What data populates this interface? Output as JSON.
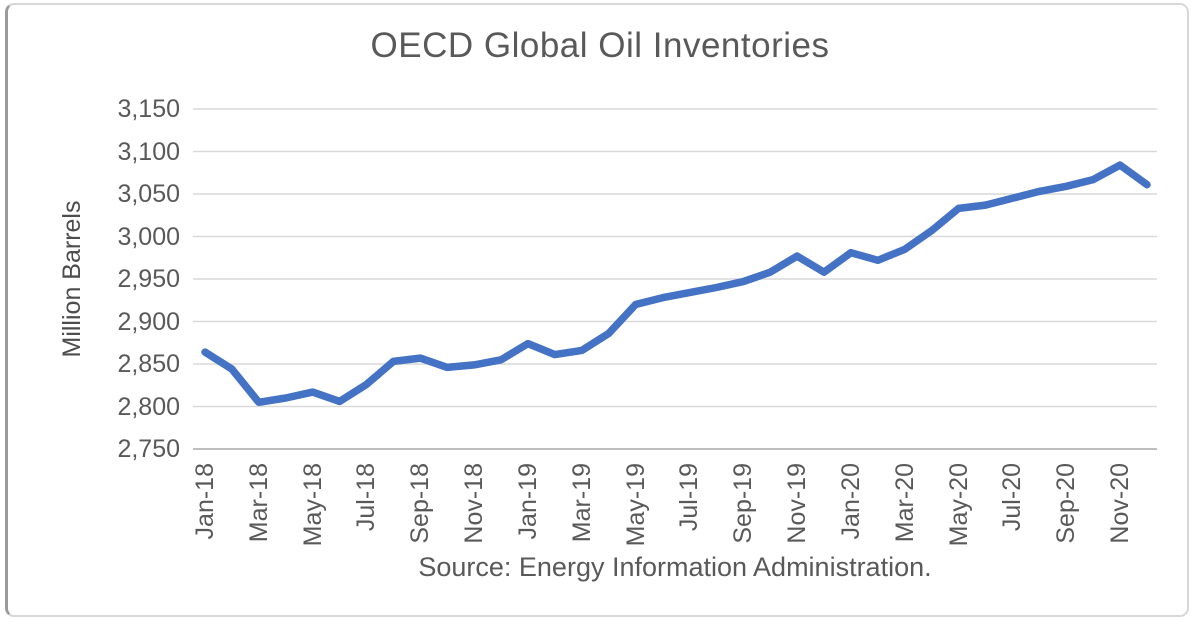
{
  "title": "OECD Global Oil Inventories",
  "source": "Source: Energy Information Administration.",
  "chart_data": {
    "type": "line",
    "title": "OECD Global Oil Inventories",
    "xlabel": "",
    "ylabel": "Million Barrels",
    "x": [
      "Jan-18",
      "Feb-18",
      "Mar-18",
      "Apr-18",
      "May-18",
      "Jun-18",
      "Jul-18",
      "Aug-18",
      "Sep-18",
      "Oct-18",
      "Nov-18",
      "Dec-18",
      "Jan-19",
      "Feb-19",
      "Mar-19",
      "Apr-19",
      "May-19",
      "Jun-19",
      "Jul-19",
      "Aug-19",
      "Sep-19",
      "Oct-19",
      "Nov-19",
      "Dec-19",
      "Jan-20",
      "Feb-20",
      "Mar-20",
      "Apr-20",
      "May-20",
      "Jun-20",
      "Jul-20",
      "Aug-20",
      "Sep-20",
      "Oct-20",
      "Nov-20",
      "Dec-20"
    ],
    "values": [
      2864,
      2844,
      2805,
      2810,
      2817,
      2806,
      2826,
      2853,
      2857,
      2846,
      2849,
      2855,
      2874,
      2861,
      2866,
      2886,
      2920,
      2928,
      2934,
      2940,
      2947,
      2958,
      2977,
      2958,
      2981,
      2972,
      2985,
      3007,
      3033,
      3037,
      3045,
      3053,
      3059,
      3067,
      3084,
      3061
    ],
    "xtick_labels": [
      "Jan-18",
      "Mar-18",
      "May-18",
      "Jul-18",
      "Sep-18",
      "Nov-18",
      "Jan-19",
      "Mar-19",
      "May-19",
      "Jul-19",
      "Sep-19",
      "Nov-19",
      "Jan-20",
      "Mar-20",
      "May-20",
      "Jul-20",
      "Sep-20",
      "Nov-20"
    ],
    "ytick_values": [
      3150,
      3100,
      3050,
      3000,
      2950,
      2900,
      2850,
      2800,
      2750
    ],
    "ytick_labels": [
      "3,150",
      "3,100",
      "3,050",
      "3,000",
      "2,950",
      "2,900",
      "2,850",
      "2,800",
      "2,750"
    ],
    "ylim": [
      2750,
      3150
    ],
    "grid": true,
    "legend": "none",
    "line_color": "#4472C4",
    "gridline_color": "#D9D9D9",
    "axis_color": "#BFBFBF",
    "text_color": "#595959"
  }
}
